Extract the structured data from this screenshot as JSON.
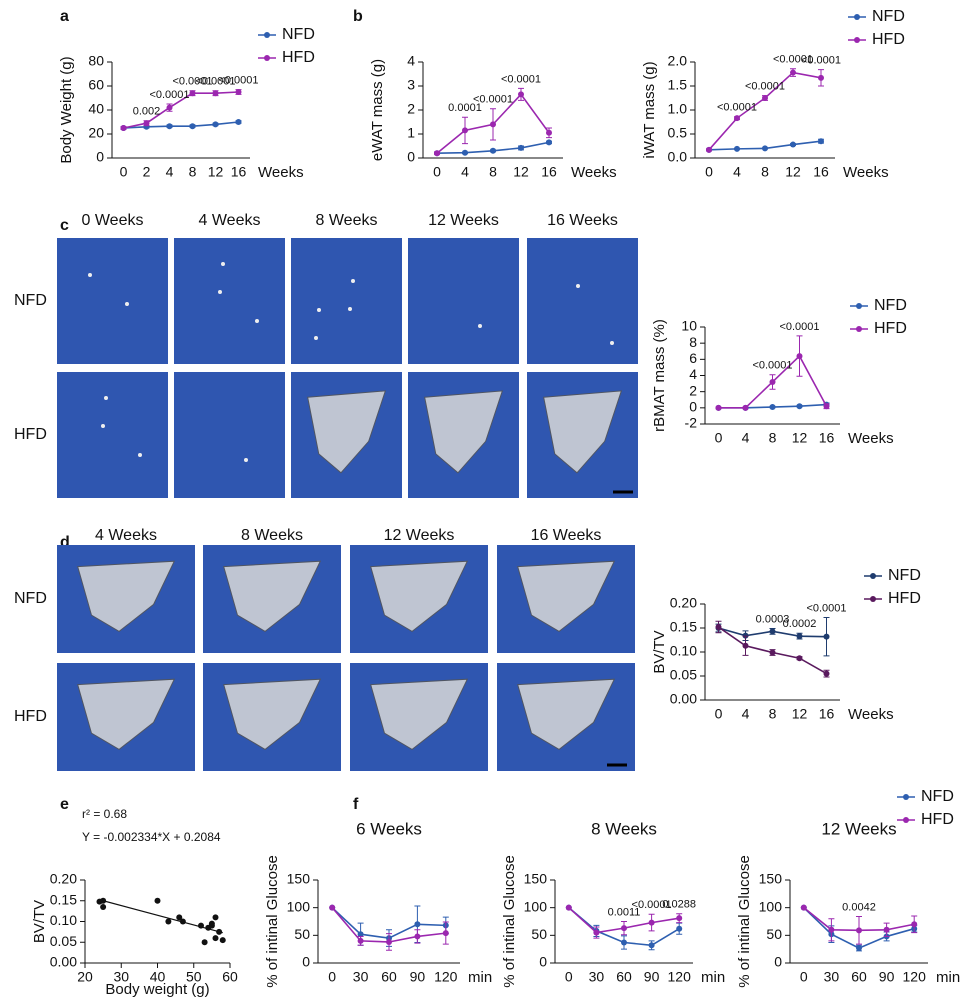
{
  "figure": {
    "panel_labels": [
      "a",
      "b",
      "c",
      "d",
      "e",
      "f"
    ],
    "c_images": {
      "columns": [
        "0 Weeks",
        "4 Weeks",
        "8 Weeks",
        "12 Weeks",
        "16 Weeks"
      ],
      "rows": [
        "NFD",
        "HFD"
      ]
    },
    "d_images": {
      "columns": [
        "4 Weeks",
        "8 Weeks",
        "12 Weeks",
        "16 Weeks"
      ],
      "rows": [
        "NFD",
        "HFD"
      ]
    }
  },
  "chart_data": [
    {
      "type": "line",
      "ylabel": "Body Weight (g)",
      "xlabel": "Weeks",
      "categories": [
        "0",
        "2",
        "4",
        "8",
        "12",
        "16"
      ],
      "ylim": [
        0,
        80
      ],
      "yticks": [
        0,
        20,
        40,
        60,
        80
      ],
      "legend": true,
      "series": [
        {
          "name": "NFD",
          "color": "#2e5fb0",
          "values": [
            25,
            26,
            26.5,
            26.5,
            28,
            30
          ],
          "errors": [
            1,
            1,
            1,
            1,
            1,
            1
          ]
        },
        {
          "name": "HFD",
          "color": "#9b27af",
          "values": [
            25,
            29,
            42,
            54,
            54,
            55
          ],
          "errors": [
            1,
            2,
            3,
            2,
            2,
            2
          ]
        }
      ],
      "annotations": [
        {
          "x": "2",
          "text": "0.002"
        },
        {
          "x": "4",
          "text": "<0.0001"
        },
        {
          "x": "8",
          "text": "<0.0001"
        },
        {
          "x": "12",
          "text": "<0.0001"
        },
        {
          "x": "16",
          "text": "<0.0001"
        }
      ]
    },
    {
      "type": "line",
      "ylabel": "eWAT mass (g)",
      "xlabel": "Weeks",
      "categories": [
        "0",
        "4",
        "8",
        "12",
        "16"
      ],
      "ylim": [
        0,
        4
      ],
      "yticks": [
        0,
        1,
        2,
        3,
        4
      ],
      "legend": false,
      "series": [
        {
          "name": "NFD",
          "color": "#2e5fb0",
          "values": [
            0.2,
            0.22,
            0.3,
            0.42,
            0.65
          ],
          "errors": [
            0.02,
            0.03,
            0.04,
            0.08,
            0.05
          ]
        },
        {
          "name": "HFD",
          "color": "#9b27af",
          "values": [
            0.2,
            1.15,
            1.4,
            2.65,
            1.05
          ],
          "errors": [
            0.05,
            0.55,
            0.65,
            0.25,
            0.2
          ]
        }
      ],
      "annotations": [
        {
          "x": "4",
          "text": "0.0001"
        },
        {
          "x": "8",
          "text": "<0.0001"
        },
        {
          "x": "12",
          "text": "<0.0001"
        }
      ]
    },
    {
      "type": "line",
      "ylabel": "iWAT mass (g)",
      "xlabel": "Weeks",
      "categories": [
        "0",
        "4",
        "8",
        "12",
        "16"
      ],
      "ylim": [
        0,
        2
      ],
      "yticks": [
        {
          "value": 0,
          "label": "0.0"
        },
        {
          "value": 0.5,
          "label": "0.5"
        },
        {
          "value": 1,
          "label": "1.0"
        },
        {
          "value": 1.5,
          "label": "1.5"
        },
        {
          "value": 2,
          "label": "2.0"
        }
      ],
      "legend": true,
      "series": [
        {
          "name": "NFD",
          "color": "#2e5fb0",
          "values": [
            0.17,
            0.19,
            0.2,
            0.28,
            0.35
          ],
          "errors": [
            0.02,
            0.01,
            0.01,
            0.02,
            0.04
          ]
        },
        {
          "name": "HFD",
          "color": "#9b27af",
          "values": [
            0.17,
            0.83,
            1.25,
            1.78,
            1.67
          ],
          "errors": [
            0.02,
            0.03,
            0.05,
            0.08,
            0.17
          ]
        }
      ],
      "annotations": [
        {
          "x": "4",
          "text": "<0.0001"
        },
        {
          "x": "8",
          "text": "<0.0001"
        },
        {
          "x": "12",
          "text": "<0.0001"
        },
        {
          "x": "16",
          "text": "<0.0001"
        }
      ]
    },
    {
      "type": "line",
      "ylabel": "rBMAT mass (%)",
      "xlabel": "Weeks",
      "categories": [
        "0",
        "4",
        "8",
        "12",
        "16"
      ],
      "ylim": [
        -2,
        10
      ],
      "yticks": [
        -2,
        0,
        2,
        4,
        6,
        8,
        10
      ],
      "legend": true,
      "series": [
        {
          "name": "NFD",
          "color": "#2e5fb0",
          "values": [
            0,
            0,
            0.1,
            0.2,
            0.4
          ],
          "errors": [
            0.1,
            0.1,
            0.1,
            0.1,
            0.2
          ]
        },
        {
          "name": "HFD",
          "color": "#9b27af",
          "values": [
            0,
            0,
            3.2,
            6.4,
            0.2
          ],
          "errors": [
            0.1,
            0.1,
            0.9,
            2.5,
            0.3
          ]
        }
      ],
      "annotations": [
        {
          "x": "8",
          "text": "<0.0001"
        },
        {
          "x": "12",
          "text": "<0.0001"
        }
      ]
    },
    {
      "type": "line",
      "ylabel": "BV/TV",
      "xlabel": "Weeks",
      "categories": [
        "0",
        "4",
        "8",
        "12",
        "16"
      ],
      "ylim": [
        0,
        0.2
      ],
      "yticks": [
        {
          "value": 0,
          "label": "0.00"
        },
        {
          "value": 0.05,
          "label": "0.05"
        },
        {
          "value": 0.1,
          "label": "0.10"
        },
        {
          "value": 0.15,
          "label": "0.15"
        },
        {
          "value": 0.2,
          "label": "0.20"
        }
      ],
      "legend": true,
      "series": [
        {
          "name": "NFD",
          "color": "#1f3c6e",
          "values": [
            0.15,
            0.134,
            0.143,
            0.133,
            0.132
          ],
          "errors": [
            0.008,
            0.01,
            0.006,
            0.006,
            0.04
          ]
        },
        {
          "name": "HFD",
          "color": "#5a1a5e",
          "values": [
            0.152,
            0.113,
            0.099,
            0.087,
            0.055
          ],
          "errors": [
            0.012,
            0.02,
            0.006,
            0.003,
            0.007
          ]
        }
      ],
      "annotations": [
        {
          "x": "8",
          "text": "0.0003"
        },
        {
          "x": "12",
          "text": "0.0002"
        },
        {
          "x": "16",
          "text": "<0.0001"
        }
      ]
    },
    {
      "type": "scatter",
      "ylabel": "BV/TV",
      "xlabel": "Body weight (g)",
      "color": "#111111",
      "x": [
        24,
        25,
        25,
        40,
        43,
        46,
        47,
        52,
        53,
        54,
        55,
        55,
        56,
        56,
        57,
        58
      ],
      "values": [
        0.148,
        0.15,
        0.135,
        0.15,
        0.1,
        0.11,
        0.1,
        0.09,
        0.05,
        0.085,
        0.09,
        0.095,
        0.11,
        0.06,
        0.075,
        0.055
      ],
      "xlim": [
        20,
        60
      ],
      "xticks": [
        20,
        30,
        40,
        50,
        60
      ],
      "ylim": [
        0,
        0.2
      ],
      "yticks": [
        {
          "value": 0,
          "label": "0.00"
        },
        {
          "value": 0.05,
          "label": "0.05"
        },
        {
          "value": 0.1,
          "label": "0.10"
        },
        {
          "value": 0.15,
          "label": "0.15"
        },
        {
          "value": 0.2,
          "label": "0.20"
        }
      ],
      "fit": {
        "slope": -0.002334,
        "intercept": 0.2084
      },
      "texts": [
        "r² = 0.68",
        "Y = -0.002334*X + 0.2084"
      ]
    },
    {
      "type": "line",
      "title": "6 Weeks",
      "ylabel": "% of intinal Glucose",
      "xlabel": "min",
      "categories": [
        "0",
        "30",
        "60",
        "90",
        "120"
      ],
      "ylim": [
        0,
        150
      ],
      "yticks": [
        0,
        50,
        100,
        150
      ],
      "legend": false,
      "series": [
        {
          "name": "NFD",
          "color": "#2e5fb0",
          "values": [
            100,
            52,
            45,
            70,
            68
          ],
          "errors": [
            0,
            20,
            15,
            33,
            15
          ]
        },
        {
          "name": "HFD",
          "color": "#9b27af",
          "values": [
            100,
            40,
            38,
            48,
            54
          ],
          "errors": [
            0,
            8,
            15,
            12,
            20
          ]
        }
      ],
      "annotations": []
    },
    {
      "type": "line",
      "title": "8 Weeks",
      "ylabel": "% of intinal Glucose",
      "xlabel": "min",
      "categories": [
        "0",
        "30",
        "60",
        "90",
        "120"
      ],
      "ylim": [
        0,
        150
      ],
      "yticks": [
        0,
        50,
        100,
        150
      ],
      "legend": false,
      "series": [
        {
          "name": "NFD",
          "color": "#2e5fb0",
          "values": [
            100,
            58,
            37,
            32,
            62
          ],
          "errors": [
            0,
            10,
            12,
            8,
            10
          ]
        },
        {
          "name": "HFD",
          "color": "#9b27af",
          "values": [
            100,
            55,
            63,
            73,
            81
          ],
          "errors": [
            0,
            10,
            12,
            15,
            8
          ]
        }
      ],
      "annotations": [
        {
          "x": "60",
          "text": "0.0011"
        },
        {
          "x": "90",
          "text": "<0.0001"
        },
        {
          "x": "120",
          "text": "0.0288"
        }
      ]
    },
    {
      "type": "line",
      "title": "12 Weeks",
      "ylabel": "% of intinal Glucose",
      "xlabel": "min",
      "categories": [
        "0",
        "30",
        "60",
        "90",
        "120"
      ],
      "ylim": [
        0,
        150
      ],
      "yticks": [
        0,
        50,
        100,
        150
      ],
      "legend": true,
      "series": [
        {
          "name": "NFD",
          "color": "#2e5fb0",
          "values": [
            100,
            52,
            27,
            48,
            62
          ],
          "errors": [
            0,
            15,
            5,
            8,
            6
          ]
        },
        {
          "name": "HFD",
          "color": "#9b27af",
          "values": [
            100,
            60,
            59,
            60,
            70
          ],
          "errors": [
            0,
            20,
            25,
            12,
            15
          ]
        }
      ],
      "annotations": [
        {
          "x": "60",
          "text": "0.0042"
        }
      ]
    }
  ]
}
